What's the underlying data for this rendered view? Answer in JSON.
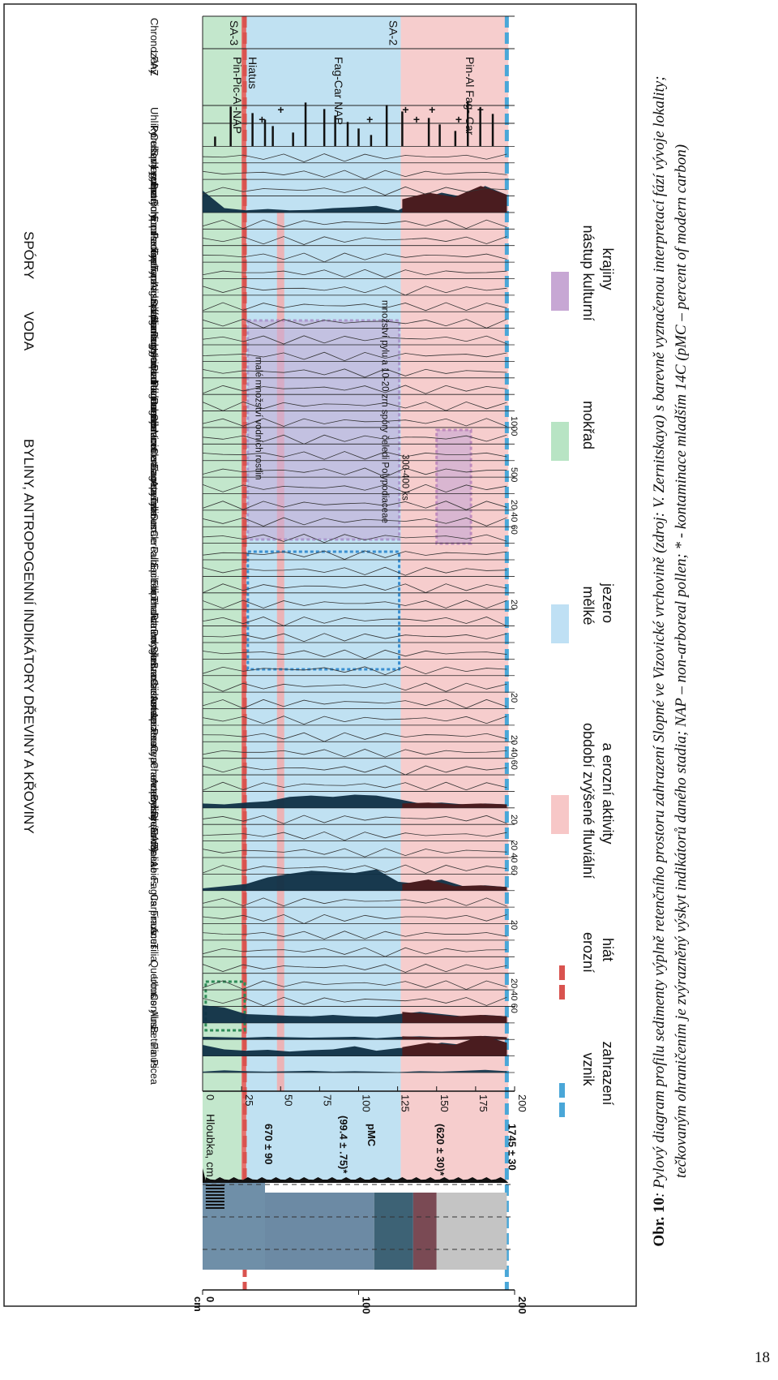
{
  "figure": {
    "caption_label": "Obr. 10",
    "caption_text": ": Pylový diagram profilu sedimenty výplně retenčního prostoru zahrazení Slopné ve Vizovické vrchovině (zdroj: V. Zernitskaya) s barevně vyznačenou interpretací fází vývoje lokality; tečkovaným ohraničením je zvýrazněný výskyt indikátorů daného stadia; NAP – non-arboreal pollen; * - kontaminace mladším 14C (pMC – percent of modern carbon)",
    "page_number": "18"
  },
  "chart_data": {
    "type": "area",
    "depth_axis_label": "Hloubka, cm",
    "depth_ticks": [
      "0",
      "25",
      "50",
      "75",
      "100",
      "125",
      "150",
      "175",
      "200"
    ],
    "depth_range": [
      0,
      200
    ],
    "cm_axis_label": "cm",
    "cm_ticks": [
      "0",
      "100",
      "200"
    ],
    "dates": [
      "670 ± 90",
      "(99.4 ± .75)*",
      "pMC",
      "(620 ± 30)*",
      "1745 ± 30"
    ],
    "group_headers": [
      "DŘEVINY A KŘOVINY",
      "BYLINY, ANTROPOGENNÍ INDIKÁTORY",
      "VODA",
      "SPÓRY"
    ],
    "taxa": [
      "Picea",
      "Pinus",
      "Betula",
      "Alnus",
      "Corylus",
      "Ulmus",
      "Quercus",
      "Tilia",
      "Acer",
      "Fraxinus",
      "Carpinus",
      "Fagus",
      "Abies",
      "Salix",
      "Ericaceae",
      "Rhamnus",
      "Byliny (NAP)",
      "Artemisia",
      "Chenopodiaceae",
      "Cyperaceae",
      "Poaceae",
      "Apiaceae",
      "Asteraceae",
      "Cichoriaceae",
      "Brassicaceae",
      "Silenaceae",
      "Polygonum bistorta",
      "Ranunculus",
      "Thalictrum",
      "Filipendula",
      "Epilobium",
      "Rubiaceae",
      "Cerealia",
      "Secale",
      "Triticum",
      "Avena",
      "Fagopyrum",
      "Centaurea cyanus",
      "Vicia",
      "Sedum",
      "Rumex acetosa/acetosella",
      "Plantago lanceolata",
      "Plantago major",
      "Urtica dioica",
      "Polygonum aviculare",
      "Suma pylu vodních rostlin",
      "Sparganium",
      "Alisma plantago-aquati. t",
      "Typha latifolia",
      "Typha angustifolia",
      "Pediastrum",
      "Equisetum",
      "Polypodiaceae",
      "Botrychium",
      "Lycopodium",
      "Sphagnum",
      "Celková suma"
    ],
    "right_columns": [
      "Porušený pyl",
      "Uhlíky",
      "LPAZ",
      "Chronozóny"
    ],
    "zones": [
      {
        "name": "SA-3",
        "lpaz": "Pin-Pic-Al-NAP",
        "from": 0,
        "to": 25,
        "color": "#b9e3c3"
      },
      {
        "name": "Hiatus",
        "lpaz": "Hiatus",
        "from": 25,
        "to": 28,
        "color": "#e05a55"
      },
      {
        "name": "SA-2",
        "lpaz": "Fag-Car NAP",
        "from": 28,
        "to": 127,
        "color": "#b5dcf0"
      },
      {
        "name": "",
        "lpaz": "Pin-Al Fag- Car",
        "from": 127,
        "to": 196,
        "color": "#f5c4c4"
      }
    ],
    "scale_marks": [
      "20 40 60",
      "20",
      "20 40 60",
      "20",
      "20 40 60",
      "20",
      "20",
      "20 40 60",
      "500",
      "1000"
    ],
    "box_notes": [
      "malé množství vodních rostlin",
      "množství pylu a 10-20 zrn spóry čeledi Polypodiaceae",
      "300-400 ks"
    ],
    "legend": [
      {
        "label": "vznik zahrazení",
        "color": "#4aa7d8",
        "style": "dash"
      },
      {
        "label": "erozní hiát",
        "color": "#d9534f",
        "style": "dash"
      },
      {
        "label": "období zvýšené fluviální a erozní aktivity",
        "color": "#f7c7c7",
        "style": "box"
      },
      {
        "label": "mělké jezero",
        "color": "#bfe0f4",
        "style": "box"
      },
      {
        "label": "mokřad",
        "color": "#b8e4c4",
        "style": "box"
      },
      {
        "label": "nástup kulturní krajiny",
        "color": "#c7a7d4",
        "style": "box"
      }
    ],
    "curves": {
      "Picea": [
        2,
        5,
        3,
        2,
        3,
        4,
        2,
        3,
        2,
        1,
        3,
        2,
        4,
        6,
        3
      ],
      "Pinus": [
        25,
        15,
        12,
        14,
        10,
        13,
        15,
        22,
        12,
        18,
        20,
        30,
        25,
        45,
        30
      ],
      "Betula": [
        6,
        5,
        4,
        6,
        5,
        4,
        5,
        6,
        3,
        6,
        7,
        5,
        6,
        8,
        5
      ],
      "Alnus": [
        40,
        35,
        20,
        18,
        16,
        15,
        18,
        15,
        14,
        20,
        25,
        20,
        15,
        18,
        15
      ],
      "Fagus": [
        5,
        10,
        15,
        30,
        38,
        45,
        42,
        40,
        48,
        20,
        15,
        25,
        10,
        12,
        8
      ],
      "Byliny (NAP)": [
        10,
        8,
        12,
        15,
        25,
        28,
        25,
        30,
        28,
        20,
        10,
        12,
        8,
        10,
        8
      ],
      "Polypodiaceae": [
        50,
        10,
        5,
        8,
        5,
        6,
        10,
        12,
        15,
        5,
        30,
        45,
        35,
        60,
        40
      ]
    }
  }
}
